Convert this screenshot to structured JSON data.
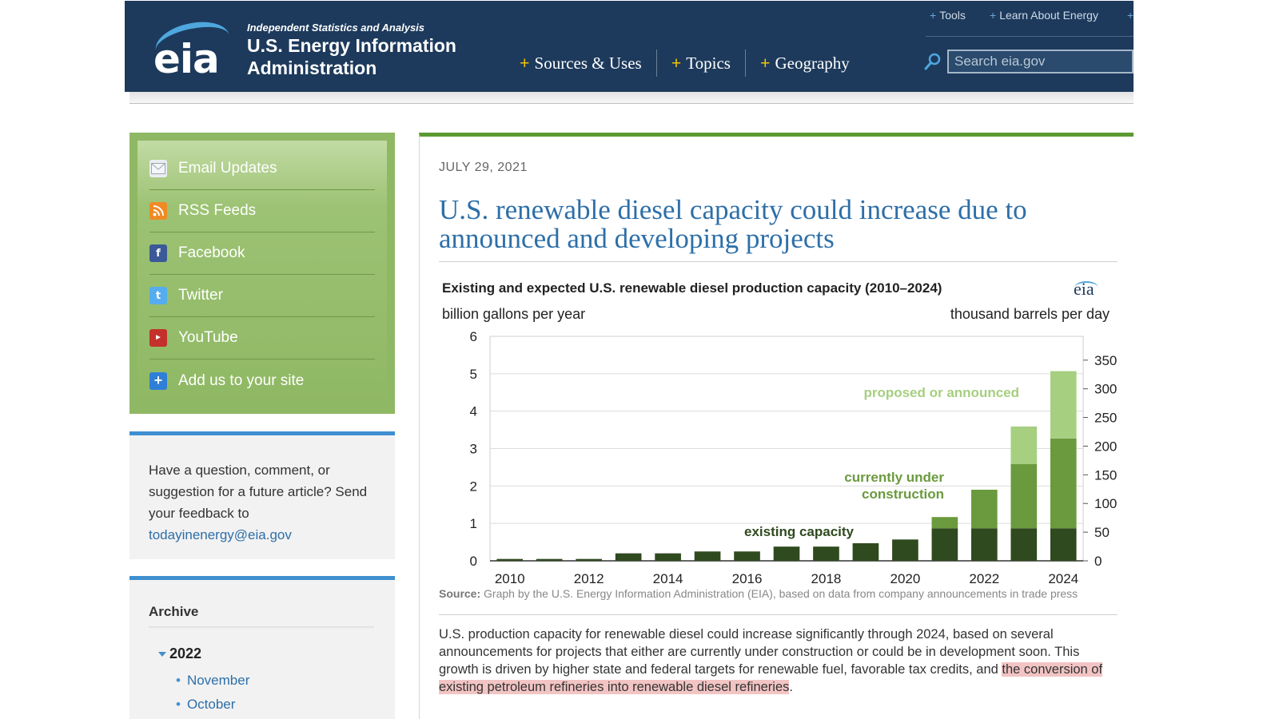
{
  "header": {
    "logo_text": "eia",
    "tagline": "Independent Statistics and Analysis",
    "org_name": "U.S. Energy Information Administration",
    "nav": [
      "Sources & Uses",
      "Topics",
      "Geography"
    ],
    "util_links": [
      "Tools",
      "Learn About Energy"
    ],
    "search_placeholder": "Search eia.gov"
  },
  "sidebar": {
    "social": [
      {
        "label": "Email Updates",
        "icon": "email-icon"
      },
      {
        "label": "RSS Feeds",
        "icon": "rss-icon"
      },
      {
        "label": "Facebook",
        "icon": "facebook-icon"
      },
      {
        "label": "Twitter",
        "icon": "twitter-icon"
      },
      {
        "label": "YouTube",
        "icon": "youtube-icon"
      },
      {
        "label": "Add us to your site",
        "icon": "add-icon"
      }
    ],
    "feedback_text": "Have a question, comment, or suggestion for a future article? Send your feedback to",
    "feedback_email": "todayinenergy@eia.gov",
    "archive": {
      "title": "Archive",
      "year": "2022",
      "months": [
        "November",
        "October"
      ]
    }
  },
  "article": {
    "date": "JULY 29, 2021",
    "title": "U.S. renewable diesel capacity could increase due to announced and developing projects",
    "source_label": "Source:",
    "source_text": "Graph by the U.S. Energy Information Administration (EIA), based on data from company announcements in trade press",
    "body_plain": "U.S. production capacity for renewable diesel could increase significantly through 2024, based on several announcements for projects that either are currently under construction or could be in development soon. This growth is driven by higher state and federal targets for renewable fuel, favorable tax credits, and ",
    "body_highlight": "the conversion of existing petroleum refineries into renewable diesel refineries",
    "body_end": "."
  },
  "chart_data": {
    "type": "bar",
    "title": "Existing and expected U.S. renewable diesel production capacity (2010–2024)",
    "logo": "eia",
    "ylabel": "billion gallons per year",
    "ylabel_right": "thousand barrels per day",
    "ylim": [
      0,
      6
    ],
    "yticks": [
      0,
      1,
      2,
      3,
      4,
      5,
      6
    ],
    "yticks_right": [
      0,
      50,
      100,
      150,
      200,
      250,
      300,
      350
    ],
    "right_factor": 65.25,
    "categories": [
      "2010",
      "2011",
      "2012",
      "2013",
      "2014",
      "2015",
      "2016",
      "2017",
      "2018",
      "2019",
      "2020",
      "2021",
      "2022",
      "2023",
      "2024"
    ],
    "xtick_labels": [
      "2010",
      "2012",
      "2014",
      "2016",
      "2018",
      "2020",
      "2022",
      "2024"
    ],
    "stacked": true,
    "series": [
      {
        "name": "existing capacity",
        "color": "#2f4a1e",
        "values": [
          0.05,
          0.05,
          0.05,
          0.2,
          0.2,
          0.25,
          0.25,
          0.38,
          0.38,
          0.47,
          0.57,
          0.87,
          0.87,
          0.87,
          0.87
        ]
      },
      {
        "name": "currently under construction",
        "color": "#6a9a3d",
        "values": [
          0,
          0,
          0,
          0,
          0,
          0,
          0,
          0,
          0,
          0,
          0,
          0.3,
          1.03,
          1.72,
          2.4
        ]
      },
      {
        "name": "proposed or announced",
        "color": "#a6cf80",
        "values": [
          0,
          0,
          0,
          0,
          0,
          0,
          0,
          0,
          0,
          0,
          0,
          0,
          0,
          1.0,
          1.8
        ]
      }
    ],
    "annotations": [
      "proposed or announced",
      "currently under construction",
      "existing capacity"
    ],
    "grid": true,
    "legend": "inline labels"
  }
}
